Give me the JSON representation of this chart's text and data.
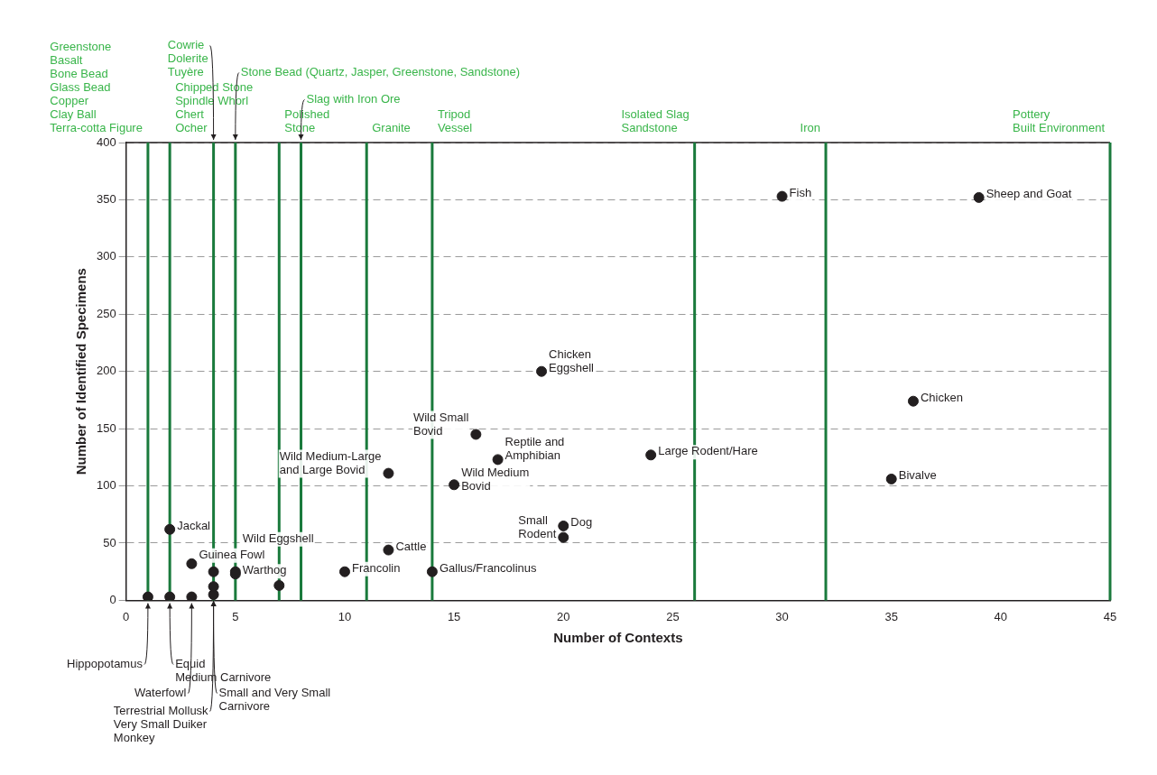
{
  "chart_data": {
    "type": "scatter",
    "xlabel": "Number of Contexts",
    "ylabel": "Number of Identified Specimens",
    "x": [
      1,
      2,
      3,
      4,
      2,
      3,
      4,
      4,
      5,
      5,
      7,
      10,
      12,
      12,
      14,
      15,
      16,
      17,
      19,
      20,
      20,
      24,
      30,
      39,
      36,
      35
    ],
    "values": [
      3,
      3,
      3,
      5,
      62,
      32,
      25,
      12,
      25,
      23,
      13,
      25,
      44,
      111,
      25,
      101,
      145,
      123,
      200,
      65,
      55,
      127,
      353,
      352,
      174,
      106
    ],
    "color": "#231f20",
    "marker": "circle",
    "xlim": [
      0,
      45
    ],
    "xticks": [
      0,
      5,
      10,
      15,
      20,
      25,
      30,
      35,
      40,
      45
    ],
    "ylim": [
      0,
      400
    ],
    "yticks": [
      0,
      50,
      100,
      150,
      200,
      250,
      300,
      350,
      400
    ],
    "grid": "y",
    "legend": false,
    "ref_lines": [
      {
        "axis": "x",
        "value": 1,
        "label": "Greenstone\nBasalt\nBone Bead\nGlass Bead\nCopper\nClay Ball\nTerra-cotta Figure",
        "color": "#1a7a3c"
      },
      {
        "axis": "x",
        "value": 2,
        "label": "Chipped Stone\nSpindle Whorl\nChert\nOcher",
        "color": "#1a7a3c"
      },
      {
        "axis": "x",
        "value": 4,
        "label": "Cowrie\nDolerite\nTuyère",
        "color": "#1a7a3c"
      },
      {
        "axis": "x",
        "value": 5,
        "label": "Stone Bead (Quartz, Jasper, Greenstone, Sandstone)",
        "color": "#1a7a3c"
      },
      {
        "axis": "x",
        "value": 7,
        "label": "Polished\nStone",
        "color": "#1a7a3c"
      },
      {
        "axis": "x",
        "value": 8,
        "label": "Slag with Iron Ore",
        "color": "#1a7a3c"
      },
      {
        "axis": "x",
        "value": 11,
        "label": "Granite",
        "color": "#1a7a3c"
      },
      {
        "axis": "x",
        "value": 14,
        "label": "Tripod\nVessel",
        "color": "#1a7a3c"
      },
      {
        "axis": "x",
        "value": 26,
        "label": "Isolated Slag\nSandstone",
        "color": "#1a7a3c"
      },
      {
        "axis": "x",
        "value": 32,
        "label": "Iron",
        "color": "#1a7a3c"
      },
      {
        "axis": "x",
        "value": 45,
        "label": "Pottery\nBuilt Environment",
        "color": "#1a7a3c"
      }
    ],
    "annotations": [
      {
        "text": "Hippopotamus",
        "x": 1,
        "y": 3
      },
      {
        "text": "Equid\nMedium Carnivore",
        "x": 2,
        "y": 3
      },
      {
        "text": "Waterfowl",
        "x": 3,
        "y": 3
      },
      {
        "text": "Small and Very Small\nCarnivore",
        "x": 4,
        "y": 5
      },
      {
        "text": "Terrestrial Mollusk\nVery Small Duiker\nMonkey",
        "x": 4,
        "y": 5
      },
      {
        "text": "Jackal",
        "x": 2,
        "y": 62
      },
      {
        "text": "Guinea Fowl",
        "x": 3,
        "y": 32
      },
      {
        "text": "Wild Eggshell",
        "x": 5,
        "y": 25
      },
      {
        "text": "Warthog",
        "x": 5,
        "y": 23
      },
      {
        "text": "Francolin",
        "x": 10,
        "y": 25
      },
      {
        "text": "Cattle",
        "x": 12,
        "y": 44
      },
      {
        "text": "Wild Medium-Large\nand Large Bovid",
        "x": 12,
        "y": 111
      },
      {
        "text": "Gallus/Francolinus",
        "x": 14,
        "y": 25
      },
      {
        "text": "Wild Medium\nBovid",
        "x": 15,
        "y": 101
      },
      {
        "text": "Wild Small\nBovid",
        "x": 16,
        "y": 145
      },
      {
        "text": "Reptile and\nAmphibian",
        "x": 17,
        "y": 123
      },
      {
        "text": "Chicken\nEggshell",
        "x": 19,
        "y": 200
      },
      {
        "text": "Dog",
        "x": 20,
        "y": 65
      },
      {
        "text": "Small\nRodent",
        "x": 20,
        "y": 55
      },
      {
        "text": "Large Rodent/Hare",
        "x": 24,
        "y": 127
      },
      {
        "text": "Fish",
        "x": 30,
        "y": 353
      },
      {
        "text": "Sheep and Goat",
        "x": 39,
        "y": 352
      },
      {
        "text": "Chicken",
        "x": 36,
        "y": 174
      },
      {
        "text": "Bivalve",
        "x": 35,
        "y": 106
      }
    ]
  }
}
